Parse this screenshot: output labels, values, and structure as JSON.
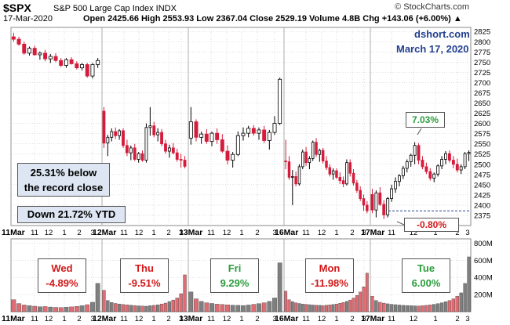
{
  "header": {
    "ticker": "$SPX",
    "ticker_name": "S&P 500 Large Cap Index  INDX",
    "date": "17-Mar-2020",
    "ohlc_line": "Open 2425.66  High 2553.93  Low 2367.04  Close 2529.19  Volume 4.8B  Chg +143.06 (+6.00%) ▲",
    "watermark": "© StockCharts.com"
  },
  "annotations": {
    "source": "dshort.com",
    "source_date": "March 17, 2020",
    "record_text": [
      "25.31% below",
      "the record close"
    ],
    "ytd_text": "Down 21.72% YTD",
    "gain_callout": "7.03%",
    "low_callout": "-0.80%"
  },
  "colors": {
    "up": "#2a9d3c",
    "down": "#d31818",
    "candle_down": "#d51c3c",
    "candle_up_fill": "#ffffff",
    "volume_up": "#7f7f7f",
    "volume_down": "#e06b72",
    "grid": "#c8c8c8",
    "reference_line": "#23408f",
    "annotation_box": "#dde6f2",
    "header_blue": "#23408f"
  },
  "chart_data": [
    {
      "type": "candlestick",
      "title": "$SPX S&P 500 Large Cap Index INDX",
      "interval": "intraday",
      "y_axis_side": "right",
      "y_ticks": [
        2375,
        2400,
        2425,
        2450,
        2475,
        2500,
        2525,
        2550,
        2575,
        2600,
        2625,
        2650,
        2675,
        2700,
        2725,
        2750,
        2775,
        2800,
        2825
      ],
      "ylim": [
        2350,
        2835
      ],
      "reference_line": 2386,
      "x_tick_labels": [
        "11Mar",
        "11",
        "12",
        "1",
        "2",
        "3",
        "12Mar",
        "11",
        "12",
        "1",
        "2",
        "3",
        "13Mar",
        "11",
        "12",
        "1",
        "2",
        "3",
        "16Mar",
        "11",
        "12",
        "1",
        "2",
        "3",
        "17Mar",
        "11",
        "12",
        "1",
        "2",
        "3"
      ],
      "sessions": [
        {
          "date": "11Mar",
          "bars": [
            [
              2812,
              2822,
              2800,
              2806
            ],
            [
              2806,
              2812,
              2790,
              2794
            ],
            [
              2794,
              2800,
              2768,
              2772
            ],
            [
              2772,
              2788,
              2766,
              2784
            ],
            [
              2784,
              2790,
              2766,
              2768
            ],
            [
              2768,
              2776,
              2756,
              2772
            ],
            [
              2772,
              2780,
              2752,
              2758
            ],
            [
              2758,
              2770,
              2748,
              2764
            ],
            [
              2764,
              2772,
              2750,
              2754
            ],
            [
              2754,
              2760,
              2738,
              2742
            ],
            [
              2742,
              2760,
              2736,
              2756
            ],
            [
              2756,
              2762,
              2744,
              2746
            ],
            [
              2746,
              2752,
              2732,
              2736
            ],
            [
              2736,
              2748,
              2730,
              2744
            ],
            [
              2744,
              2748,
              2712,
              2716
            ],
            [
              2716,
              2748,
              2710,
              2744
            ],
            [
              2744,
              2760,
              2736,
              2754
            ]
          ]
        },
        {
          "date": "12Mar",
          "bars": [
            [
              2630,
              2640,
              2540,
              2552
            ],
            [
              2552,
              2572,
              2520,
              2566
            ],
            [
              2566,
              2588,
              2556,
              2580
            ],
            [
              2580,
              2590,
              2562,
              2570
            ],
            [
              2570,
              2586,
              2560,
              2582
            ],
            [
              2582,
              2588,
              2540,
              2546
            ],
            [
              2546,
              2560,
              2520,
              2528
            ],
            [
              2528,
              2546,
              2510,
              2540
            ],
            [
              2540,
              2550,
              2508,
              2512
            ],
            [
              2512,
              2530,
              2504,
              2526
            ],
            [
              2526,
              2534,
              2506,
              2510
            ],
            [
              2510,
              2600,
              2504,
              2590
            ],
            [
              2590,
              2640,
              2570,
              2594
            ],
            [
              2594,
              2604,
              2566,
              2572
            ],
            [
              2572,
              2588,
              2556,
              2578
            ],
            [
              2578,
              2586,
              2544,
              2550
            ],
            [
              2550,
              2560,
              2526,
              2532
            ],
            [
              2532,
              2548,
              2516,
              2540
            ],
            [
              2540,
              2552,
              2524,
              2528
            ],
            [
              2528,
              2538,
              2506,
              2512
            ],
            [
              2512,
              2526,
              2492,
              2510
            ],
            [
              2510,
              2520,
              2490,
              2495
            ]
          ]
        },
        {
          "date": "13Mar",
          "bars": [
            [
              2564,
              2640,
              2548,
              2604
            ],
            [
              2604,
              2610,
              2556,
              2566
            ],
            [
              2566,
              2580,
              2550,
              2574
            ],
            [
              2574,
              2586,
              2550,
              2556
            ],
            [
              2556,
              2580,
              2544,
              2576
            ],
            [
              2576,
              2588,
              2550,
              2560
            ],
            [
              2560,
              2574,
              2528,
              2532
            ],
            [
              2532,
              2546,
              2500,
              2510
            ],
            [
              2510,
              2530,
              2492,
              2524
            ],
            [
              2524,
              2580,
              2520,
              2570
            ],
            [
              2570,
              2590,
              2558,
              2576
            ],
            [
              2576,
              2594,
              2566,
              2588
            ],
            [
              2588,
              2596,
              2570,
              2576
            ],
            [
              2576,
              2590,
              2560,
              2584
            ],
            [
              2584,
              2594,
              2552,
              2558
            ],
            [
              2558,
              2584,
              2536,
              2578
            ],
            [
              2578,
              2618,
              2572,
              2600
            ],
            [
              2600,
              2712,
              2596,
              2708
            ]
          ]
        },
        {
          "date": "16Mar",
          "bars": [
            [
              2508,
              2560,
              2488,
              2506
            ],
            [
              2506,
              2520,
              2462,
              2468
            ],
            [
              2468,
              2486,
              2400,
              2470
            ],
            [
              2470,
              2482,
              2446,
              2452
            ],
            [
              2452,
              2500,
              2448,
              2494
            ],
            [
              2494,
              2536,
              2488,
              2530
            ],
            [
              2530,
              2542,
              2496,
              2504
            ],
            [
              2504,
              2520,
              2488,
              2514
            ],
            [
              2514,
              2558,
              2508,
              2554
            ],
            [
              2554,
              2564,
              2518,
              2524
            ],
            [
              2524,
              2538,
              2506,
              2534
            ],
            [
              2534,
              2540,
              2502,
              2508
            ],
            [
              2508,
              2520,
              2486,
              2492
            ],
            [
              2492,
              2500,
              2470,
              2476
            ],
            [
              2476,
              2490,
              2462,
              2484
            ],
            [
              2484,
              2490,
              2464,
              2468
            ],
            [
              2468,
              2480,
              2452,
              2460
            ],
            [
              2460,
              2470,
              2444,
              2452
            ],
            [
              2452,
              2512,
              2448,
              2504
            ],
            [
              2504,
              2512,
              2470,
              2478
            ],
            [
              2478,
              2488,
              2448,
              2454
            ],
            [
              2454,
              2462,
              2430,
              2436
            ],
            [
              2436,
              2446,
              2410,
              2416
            ],
            [
              2416,
              2426,
              2386,
              2400
            ],
            [
              2400,
              2410,
              2380,
              2386
            ]
          ]
        },
        {
          "date": "17Mar",
          "bars": [
            [
              2426,
              2440,
              2380,
              2388
            ],
            [
              2388,
              2436,
              2370,
              2430
            ],
            [
              2430,
              2444,
              2398,
              2402
            ],
            [
              2402,
              2412,
              2366,
              2376
            ],
            [
              2376,
              2420,
              2370,
              2416
            ],
            [
              2416,
              2450,
              2408,
              2440
            ],
            [
              2440,
              2468,
              2430,
              2458
            ],
            [
              2458,
              2476,
              2446,
              2472
            ],
            [
              2472,
              2496,
              2464,
              2490
            ],
            [
              2490,
              2512,
              2480,
              2506
            ],
            [
              2506,
              2526,
              2494,
              2522
            ],
            [
              2522,
              2554,
              2500,
              2546
            ],
            [
              2546,
              2552,
              2500,
              2510
            ],
            [
              2510,
              2520,
              2488,
              2494
            ],
            [
              2494,
              2504,
              2476,
              2482
            ],
            [
              2482,
              2490,
              2460,
              2466
            ],
            [
              2466,
              2480,
              2456,
              2476
            ],
            [
              2476,
              2500,
              2470,
              2496
            ],
            [
              2496,
              2520,
              2488,
              2512
            ],
            [
              2512,
              2532,
              2500,
              2526
            ],
            [
              2526,
              2534,
              2504,
              2510
            ],
            [
              2510,
              2520,
              2490,
              2500
            ],
            [
              2500,
              2514,
              2480,
              2486
            ],
            [
              2486,
              2500,
              2476,
              2494
            ],
            [
              2494,
              2530,
              2488,
              2526
            ],
            [
              2526,
              2534,
              2508,
              2529
            ]
          ]
        }
      ]
    },
    {
      "type": "bar",
      "title": "Volume",
      "y_axis_side": "right",
      "y_ticks": [
        "200M",
        "400M",
        "600M",
        "800M"
      ],
      "ylim": [
        0,
        850
      ],
      "unit": "M",
      "sessions": [
        {
          "date": "11Mar",
          "values": [
            140,
            95,
            78,
            70,
            64,
            58,
            60,
            54,
            50,
            48,
            52,
            56,
            62,
            70,
            82,
            110,
            330
          ]
        },
        {
          "date": "12Mar",
          "values": [
            250,
            130,
            108,
            96,
            90,
            84,
            80,
            76,
            72,
            68,
            66,
            64,
            70,
            74,
            80,
            90,
            100,
            118,
            136,
            160,
            210,
            430
          ]
        },
        {
          "date": "13Mar",
          "values": [
            230,
            150,
            120,
            104,
            96,
            88,
            84,
            80,
            76,
            74,
            72,
            78,
            86,
            94,
            104,
            120,
            160,
            570
          ]
        },
        {
          "date": "16Mar",
          "values": [
            240,
            140,
            118,
            104,
            96,
            90,
            86,
            82,
            78,
            76,
            74,
            72,
            76,
            80,
            84,
            90,
            98,
            108,
            120,
            136,
            160,
            190,
            230,
            290,
            450
          ]
        },
        {
          "date": "17Mar",
          "values": [
            180,
            130,
            110,
            100,
            92,
            86,
            82,
            78,
            74,
            72,
            70,
            68,
            66,
            70,
            74,
            80,
            86,
            94,
            104,
            116,
            130,
            150,
            180,
            220,
            330,
            640
          ]
        }
      ]
    }
  ],
  "day_changes": [
    {
      "day": "Wed",
      "change": "-4.89%"
    },
    {
      "day": "Thu",
      "change": "-9.51%"
    },
    {
      "day": "Fri",
      "change": "9.29%"
    },
    {
      "day": "Mon",
      "change": "-11.98%"
    },
    {
      "day": "Tue",
      "change": "6.00%"
    }
  ]
}
